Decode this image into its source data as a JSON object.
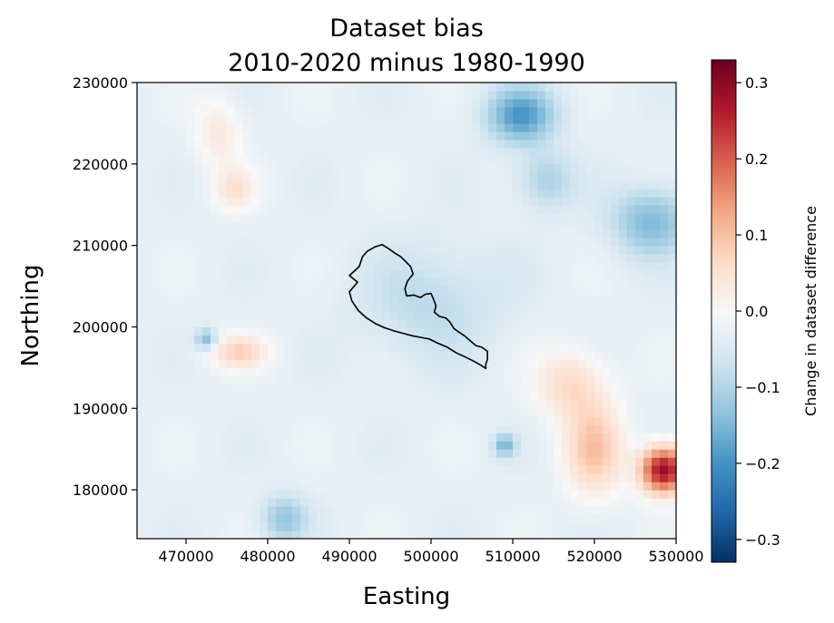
{
  "chart_data": {
    "type": "heatmap",
    "title": "Dataset bias",
    "subtitle": "2010-2020 minus 1980-1990",
    "xlabel": "Easting",
    "ylabel": "Northing",
    "xlim": [
      464000,
      530000
    ],
    "ylim": [
      174000,
      230000
    ],
    "xticks": [
      470000,
      480000,
      490000,
      500000,
      510000,
      520000,
      530000
    ],
    "xtick_labels": [
      "470000",
      "480000",
      "490000",
      "500000",
      "510000",
      "520000",
      "530000"
    ],
    "yticks": [
      180000,
      190000,
      200000,
      210000,
      220000,
      230000
    ],
    "ytick_labels": [
      "180000",
      "190000",
      "200000",
      "210000",
      "220000",
      "230000"
    ],
    "colormap": "RdBu_r",
    "colorbar": {
      "label": "Change in dataset difference",
      "range": [
        -0.33,
        0.33
      ],
      "ticks": [
        -0.3,
        -0.2,
        -0.1,
        0.0,
        0.1,
        0.2,
        0.3
      ],
      "tick_labels": [
        "−0.3",
        "−0.2",
        "−0.1",
        "0.0",
        "0.1",
        "0.2",
        "0.3"
      ]
    },
    "features": [
      {
        "x": 511000,
        "y": 226000,
        "value": -0.16,
        "sx": 3000,
        "sy": 2500
      },
      {
        "x": 527000,
        "y": 213000,
        "value": -0.12,
        "sx": 3500,
        "sy": 3000
      },
      {
        "x": 474000,
        "y": 224000,
        "value": 0.06,
        "sx": 2000,
        "sy": 3000
      },
      {
        "x": 476000,
        "y": 217000,
        "value": 0.07,
        "sx": 1800,
        "sy": 1800
      },
      {
        "x": 472500,
        "y": 198500,
        "value": -0.12,
        "sx": 900,
        "sy": 900
      },
      {
        "x": 476500,
        "y": 197000,
        "value": 0.1,
        "sx": 2500,
        "sy": 1400
      },
      {
        "x": 517000,
        "y": 193000,
        "value": 0.09,
        "sx": 3000,
        "sy": 3000
      },
      {
        "x": 520000,
        "y": 185000,
        "value": 0.12,
        "sx": 2500,
        "sy": 4000
      },
      {
        "x": 528500,
        "y": 182500,
        "value": 0.32,
        "sx": 2000,
        "sy": 2000
      },
      {
        "x": 509000,
        "y": 185500,
        "value": -0.12,
        "sx": 1000,
        "sy": 1000
      },
      {
        "x": 482000,
        "y": 176500,
        "value": -0.1,
        "sx": 2000,
        "sy": 2000
      },
      {
        "x": 514000,
        "y": 218000,
        "value": -0.08,
        "sx": 2500,
        "sy": 2500
      },
      {
        "x": 500000,
        "y": 203000,
        "value": -0.06,
        "sx": 6000,
        "sy": 5000
      }
    ],
    "background_value": -0.04,
    "outline": {
      "name": "catchment boundary",
      "color": "#000000",
      "points": [
        [
          491000,
          205500
        ],
        [
          490000,
          206300
        ],
        [
          491200,
          207400
        ],
        [
          491600,
          208600
        ],
        [
          492200,
          209300
        ],
        [
          493100,
          209800
        ],
        [
          494000,
          210100
        ],
        [
          494800,
          209600
        ],
        [
          495500,
          209100
        ],
        [
          496300,
          208600
        ],
        [
          496900,
          208000
        ],
        [
          497500,
          207400
        ],
        [
          497800,
          206500
        ],
        [
          497100,
          205600
        ],
        [
          496800,
          204700
        ],
        [
          497000,
          203800
        ],
        [
          497900,
          203900
        ],
        [
          498700,
          203600
        ],
        [
          499300,
          204000
        ],
        [
          500000,
          204100
        ],
        [
          500300,
          203400
        ],
        [
          500600,
          202600
        ],
        [
          500400,
          201800
        ],
        [
          501000,
          201300
        ],
        [
          501800,
          201100
        ],
        [
          502300,
          200600
        ],
        [
          502800,
          199800
        ],
        [
          503500,
          199300
        ],
        [
          504100,
          198900
        ],
        [
          504900,
          198200
        ],
        [
          505500,
          197700
        ],
        [
          506200,
          197500
        ],
        [
          506900,
          197000
        ],
        [
          506900,
          196000
        ],
        [
          506700,
          195400
        ],
        [
          506700,
          194900
        ],
        [
          506100,
          195300
        ],
        [
          505200,
          195800
        ],
        [
          504200,
          196300
        ],
        [
          503100,
          196800
        ],
        [
          502000,
          197500
        ],
        [
          500800,
          198000
        ],
        [
          499800,
          198500
        ],
        [
          498800,
          198700
        ],
        [
          497700,
          198900
        ],
        [
          496600,
          199200
        ],
        [
          495500,
          199500
        ],
        [
          494300,
          199900
        ],
        [
          493200,
          200400
        ],
        [
          492100,
          201100
        ],
        [
          491100,
          202000
        ],
        [
          490300,
          203200
        ],
        [
          490000,
          204300
        ]
      ]
    }
  }
}
